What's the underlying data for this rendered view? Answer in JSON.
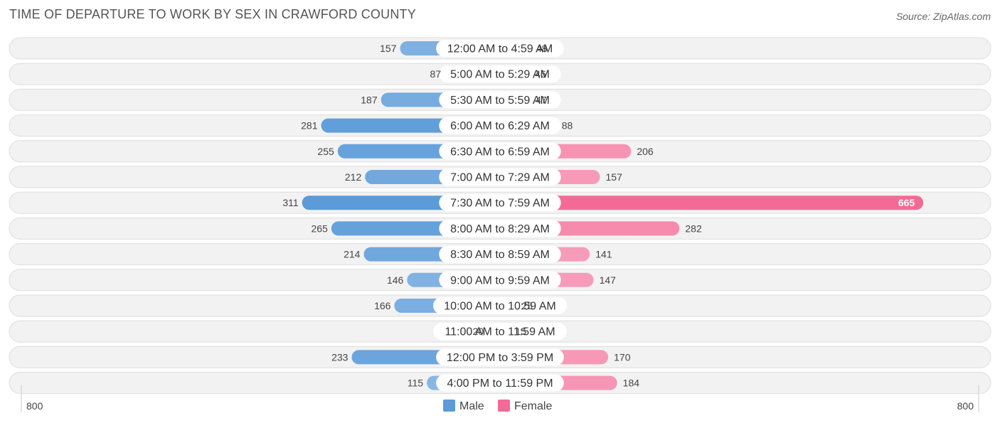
{
  "title": "TIME OF DEPARTURE TO WORK BY SEX IN CRAWFORD COUNTY",
  "source": "Source: ZipAtlas.com",
  "chart_data": {
    "type": "bar",
    "orientation": "horizontal-diverging",
    "categories": [
      "12:00 AM to 4:59 AM",
      "5:00 AM to 5:29 AM",
      "5:30 AM to 5:59 AM",
      "6:00 AM to 6:29 AM",
      "6:30 AM to 6:59 AM",
      "7:00 AM to 7:29 AM",
      "7:30 AM to 7:59 AM",
      "8:00 AM to 8:29 AM",
      "8:30 AM to 8:59 AM",
      "9:00 AM to 9:59 AM",
      "10:00 AM to 10:59 AM",
      "11:00 AM to 11:59 AM",
      "12:00 PM to 3:59 PM",
      "4:00 PM to 11:59 PM"
    ],
    "series": [
      {
        "name": "Male",
        "color": "#5b9bd9",
        "values": [
          157,
          87,
          187,
          281,
          255,
          212,
          311,
          265,
          214,
          146,
          166,
          20,
          233,
          115
        ]
      },
      {
        "name": "Female",
        "color": "#f46a96",
        "values": [
          48,
          46,
          47,
          88,
          206,
          157,
          665,
          282,
          141,
          147,
          25,
          15,
          170,
          184
        ]
      }
    ],
    "axis": {
      "left_label": "800",
      "right_label": "800",
      "max": 800
    },
    "legend": {
      "placement": "bottom-center",
      "items": [
        "Male",
        "Female"
      ]
    }
  }
}
